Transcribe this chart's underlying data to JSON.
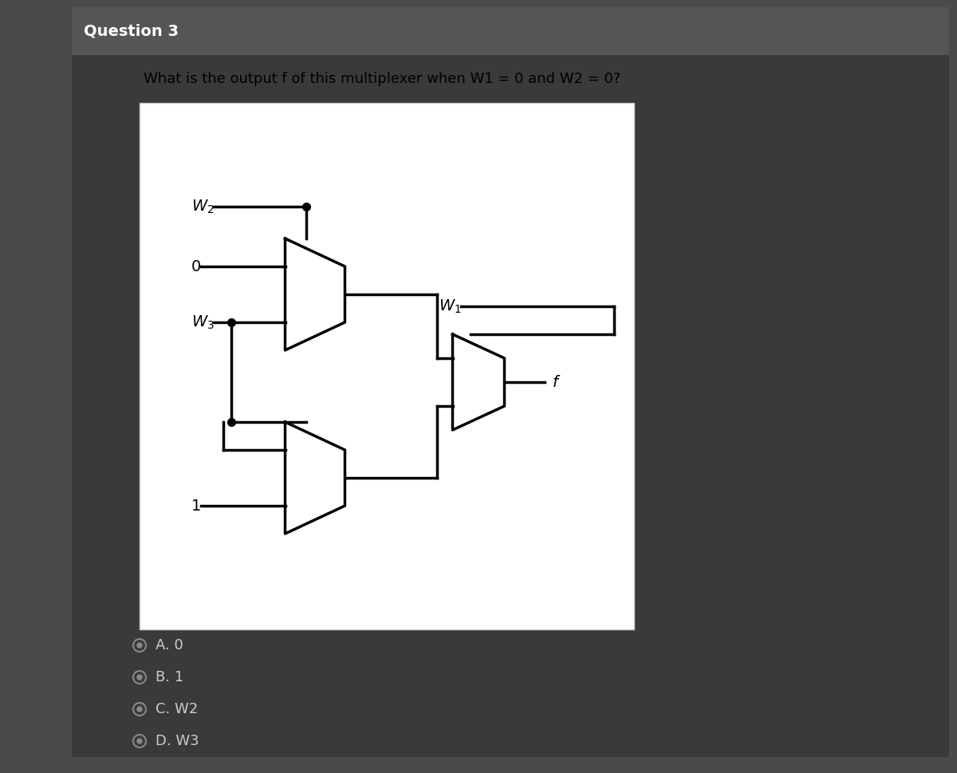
{
  "bg_outer": "#4a4a4a",
  "bg_panel": "#f0f0f0",
  "bg_white": "#ffffff",
  "question_text": "Question 3",
  "question_color": "#ffffff",
  "subtitle": "What is the output f of this multiplexer when W1 = 0 and W2 = 0?",
  "subtitle_color": "#000000",
  "choices": [
    "A. 0",
    "B. 1",
    "C. W2",
    "D. W3"
  ],
  "line_color": "#000000",
  "lw": 2.5,
  "fig_width": 12.0,
  "fig_height": 9.69
}
